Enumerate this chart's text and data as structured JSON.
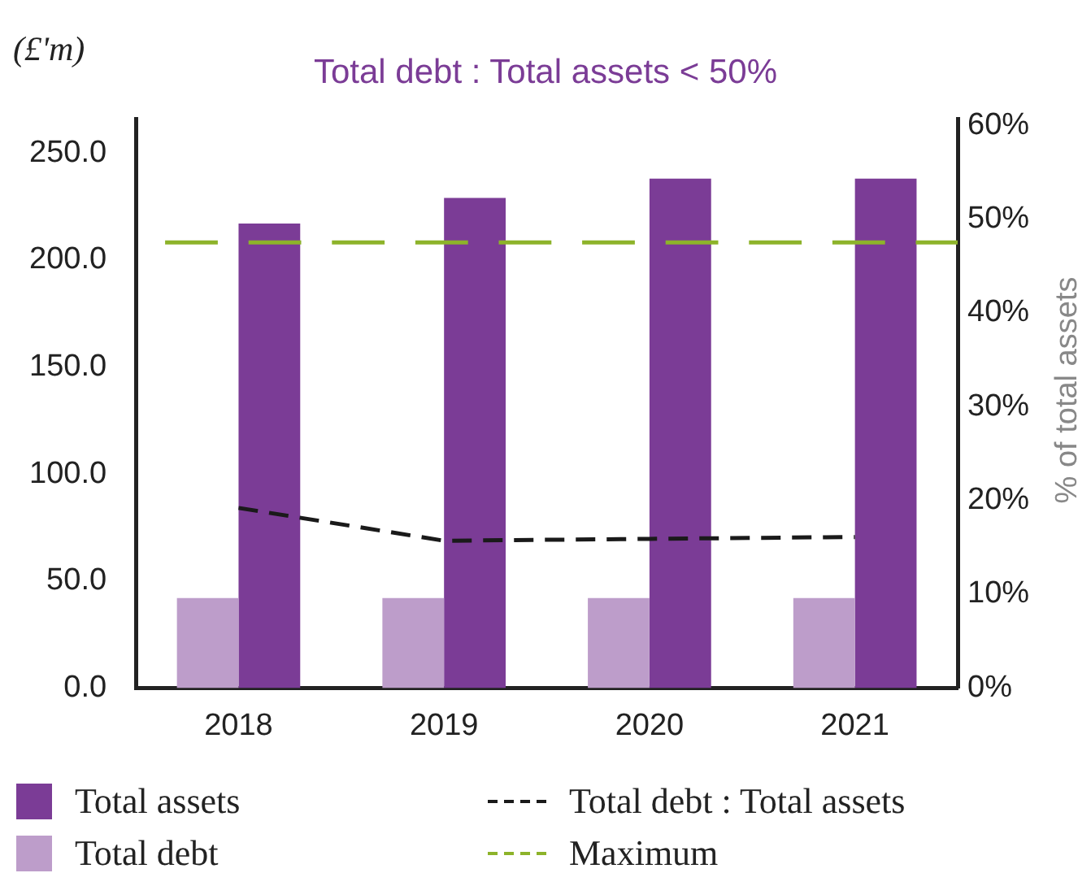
{
  "chart_data": {
    "type": "bar",
    "title": "Total debt : Total assets < 50%",
    "ylabel": "(£'m)",
    "y2label": "% of total assets",
    "categories": [
      "2018",
      "2019",
      "2020",
      "2021"
    ],
    "series": [
      {
        "name": "Total assets",
        "color": "#7b3c96",
        "values": [
          217,
          229,
          238,
          238
        ]
      },
      {
        "name": "Total debt",
        "color": "#bd9dca",
        "values": [
          42,
          42,
          42,
          42
        ]
      },
      {
        "name": "Total debt : Total assets",
        "type": "line",
        "axis": "y2",
        "color": "#1a1a1a",
        "line_style": "dashed",
        "marker": "none",
        "values": [
          19.2,
          15.7,
          15.9,
          16.1
        ]
      }
    ],
    "ref_lines": [
      {
        "axis": "y2",
        "value": 47.5,
        "label": "Maximum",
        "color": "#8db32a",
        "line_style": "dashed"
      }
    ],
    "ylim": [
      0,
      266
    ],
    "yticks": [
      {
        "value": 0,
        "label": "0.0"
      },
      {
        "value": 50,
        "label": "50.0"
      },
      {
        "value": 100,
        "label": "100.0"
      },
      {
        "value": 150,
        "label": "150.0"
      },
      {
        "value": 200,
        "label": "200.0"
      },
      {
        "value": 250,
        "label": "250.0"
      }
    ],
    "y2lim": [
      0,
      60.7
    ],
    "y2ticks": [
      {
        "value": 0,
        "label": "0%"
      },
      {
        "value": 10,
        "label": "10%"
      },
      {
        "value": 20,
        "label": "20%"
      },
      {
        "value": 30,
        "label": "30%"
      },
      {
        "value": 40,
        "label": "40%"
      },
      {
        "value": 50,
        "label": "50%"
      },
      {
        "value": 60,
        "label": "60%"
      }
    ],
    "grid": false,
    "legend": "bottom"
  }
}
